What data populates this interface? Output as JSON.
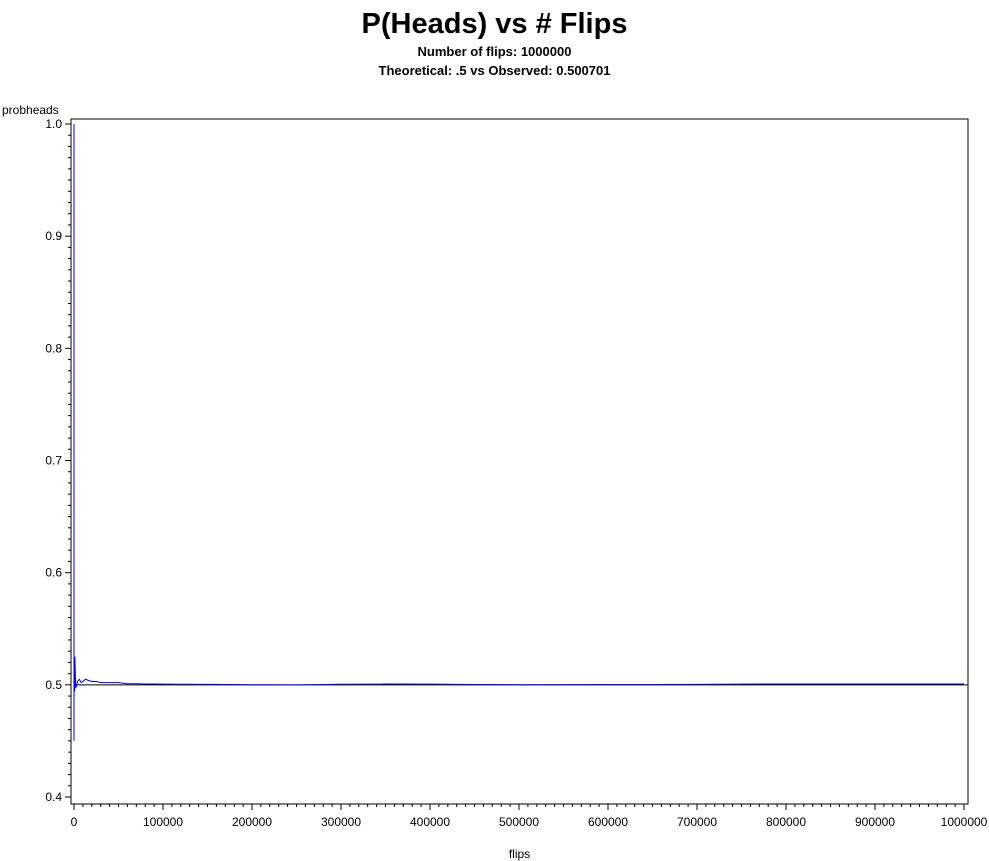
{
  "chart_data": {
    "type": "line",
    "title": "P(Heads) vs # Flips",
    "subtitle_1": "Number of flips: 1000000",
    "subtitle_2": "Theoretical: .5 vs Observed: 0.500701",
    "xlabel": "flips",
    "ylabel": "probheads",
    "xlim": [
      0,
      1000000
    ],
    "ylim": [
      0.4,
      1.0
    ],
    "x_ticks": [
      0,
      100000,
      200000,
      300000,
      400000,
      500000,
      600000,
      700000,
      800000,
      900000,
      1000000
    ],
    "y_ticks": [
      0.4,
      0.5,
      0.6,
      0.7,
      0.8,
      0.9,
      1.0
    ],
    "x_tick_labels": [
      "0",
      "100000",
      "200000",
      "300000",
      "400000",
      "500000",
      "600000",
      "700000",
      "800000",
      "900000",
      "1000000"
    ],
    "y_tick_labels": [
      "0.4",
      "0.5",
      "0.6",
      "0.7",
      "0.8",
      "0.9",
      "1.0"
    ],
    "grid": false,
    "reference_line": {
      "y": 0.5,
      "color": "#000000"
    },
    "series": [
      {
        "color": "#0000ff",
        "x": [
          1,
          2,
          3,
          5,
          8,
          12,
          20,
          35,
          60,
          100,
          200,
          400,
          700,
          1000,
          1500,
          2000,
          3000,
          4000,
          6000,
          8000,
          10000,
          13000,
          16000,
          20000,
          25000,
          30000,
          40000,
          50000,
          60000,
          70000,
          80000,
          90000,
          100000,
          120000,
          150000,
          180000,
          200000,
          250000,
          300000,
          350000,
          400000,
          450000,
          500000,
          550000,
          600000,
          650000,
          700000,
          750000,
          800000,
          850000,
          900000,
          950000,
          1000000
        ],
        "values": [
          1.0,
          0.5,
          0.667,
          0.6,
          0.45,
          0.5,
          0.55,
          0.49,
          0.483,
          0.52,
          0.505,
          0.5,
          0.494,
          0.525,
          0.51,
          0.497,
          0.5,
          0.503,
          0.505,
          0.502,
          0.503,
          0.505,
          0.504,
          0.503,
          0.503,
          0.502,
          0.502,
          0.502,
          0.501,
          0.501,
          0.5008,
          0.5007,
          0.5006,
          0.5005,
          0.5004,
          0.5003,
          0.5001,
          0.5,
          0.5005,
          0.5007,
          0.5006,
          0.5003,
          0.5001,
          0.5002,
          0.5003,
          0.5003,
          0.5004,
          0.5006,
          0.5008,
          0.5008,
          0.5007,
          0.5007,
          0.500701
        ]
      }
    ]
  }
}
